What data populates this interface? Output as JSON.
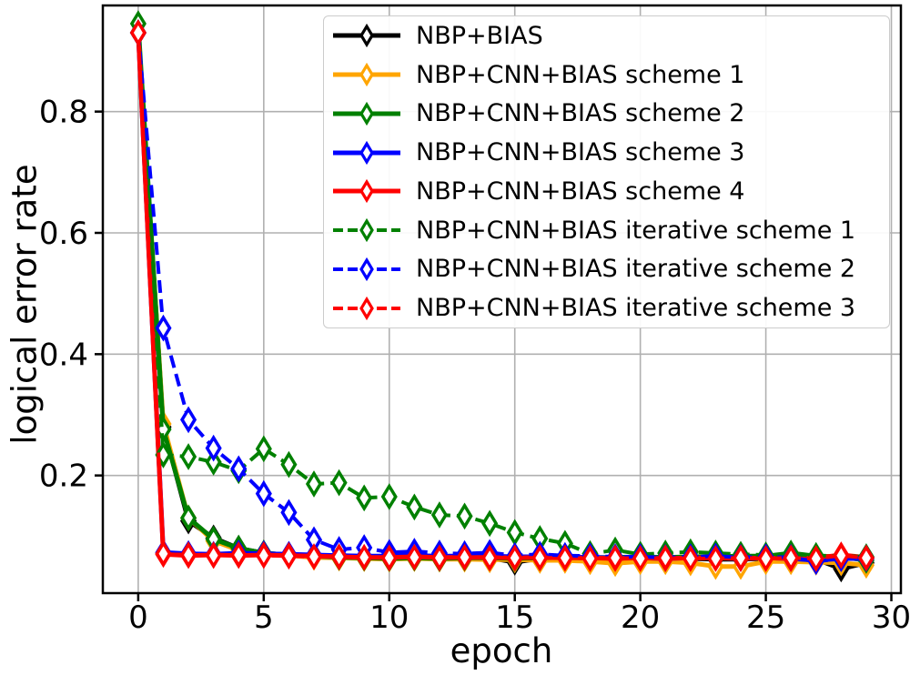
{
  "figure": {
    "background": "#ffffff",
    "frame_color": "#000000"
  },
  "chart_data": {
    "type": "line",
    "title": "",
    "xlabel": "epoch",
    "ylabel": "logical error rate",
    "grid": true,
    "grid_color": "#b0b0b0",
    "legend_position": "upper-right-inside",
    "marker": "thin-diamond-hollow",
    "xlim": [
      -1.41,
      30.38
    ],
    "ylim": [
      0.006,
      0.975
    ],
    "xticks": {
      "values": [
        0,
        5,
        10,
        15,
        20,
        25,
        30
      ],
      "labels": [
        "0",
        "5",
        "10",
        "15",
        "20",
        "25",
        "30"
      ]
    },
    "yticks": {
      "values": [
        0.2,
        0.4,
        0.6,
        0.8
      ],
      "labels": [
        "0.2",
        "0.4",
        "0.6",
        "0.8"
      ]
    },
    "x": [
      0,
      1,
      2,
      3,
      4,
      5,
      6,
      7,
      8,
      9,
      10,
      11,
      12,
      13,
      14,
      15,
      16,
      17,
      18,
      19,
      20,
      21,
      22,
      23,
      24,
      25,
      26,
      27,
      28,
      29
    ],
    "series": [
      {
        "name": "NBP+BIAS",
        "color": "#000000",
        "dash": "solid",
        "values": [
          0.93,
          0.28,
          0.125,
          0.097,
          0.08,
          0.072,
          0.069,
          0.067,
          0.065,
          0.064,
          0.064,
          0.065,
          0.063,
          0.064,
          0.064,
          0.057,
          0.063,
          0.063,
          0.062,
          0.062,
          0.063,
          0.062,
          0.063,
          0.062,
          0.062,
          0.063,
          0.062,
          0.062,
          0.046,
          0.056
        ]
      },
      {
        "name": "NBP+CNN+BIAS scheme 1",
        "color": "#FFA500",
        "dash": "solid",
        "values": [
          0.93,
          0.285,
          0.13,
          0.092,
          0.077,
          0.071,
          0.068,
          0.065,
          0.064,
          0.063,
          0.062,
          0.063,
          0.062,
          0.062,
          0.061,
          0.061,
          0.06,
          0.06,
          0.058,
          0.055,
          0.058,
          0.058,
          0.056,
          0.05,
          0.05,
          0.058,
          0.058,
          0.057,
          0.056,
          0.052
        ]
      },
      {
        "name": "NBP+CNN+BIAS scheme 2",
        "color": "#008000",
        "dash": "solid",
        "values": [
          0.945,
          0.276,
          0.13,
          0.095,
          0.08,
          0.072,
          0.069,
          0.067,
          0.065,
          0.064,
          0.063,
          0.064,
          0.063,
          0.064,
          0.064,
          0.063,
          0.064,
          0.065,
          0.065,
          0.065,
          0.066,
          0.065,
          0.066,
          0.066,
          0.067,
          0.067,
          0.072,
          0.067,
          0.066,
          0.06
        ]
      },
      {
        "name": "NBP+CNN+BIAS scheme 3",
        "color": "#0000FF",
        "dash": "solid",
        "values": [
          0.93,
          0.073,
          0.071,
          0.07,
          0.072,
          0.071,
          0.07,
          0.069,
          0.068,
          0.067,
          0.067,
          0.068,
          0.067,
          0.067,
          0.067,
          0.066,
          0.066,
          0.066,
          0.065,
          0.064,
          0.064,
          0.063,
          0.064,
          0.064,
          0.063,
          0.064,
          0.063,
          0.06,
          0.063,
          0.063
        ]
      },
      {
        "name": "NBP+CNN+BIAS scheme 4",
        "color": "#FF0000",
        "dash": "solid",
        "values": [
          0.93,
          0.07,
          0.068,
          0.069,
          0.068,
          0.069,
          0.068,
          0.067,
          0.066,
          0.065,
          0.065,
          0.066,
          0.065,
          0.065,
          0.065,
          0.064,
          0.065,
          0.064,
          0.064,
          0.063,
          0.064,
          0.063,
          0.064,
          0.064,
          0.063,
          0.064,
          0.063,
          0.064,
          0.069,
          0.065
        ]
      },
      {
        "name": "NBP+CNN+BIAS iterative scheme 1",
        "color": "#008000",
        "dash": "dashed",
        "values": [
          0.93,
          0.234,
          0.231,
          0.222,
          0.208,
          0.244,
          0.218,
          0.186,
          0.188,
          0.163,
          0.165,
          0.148,
          0.135,
          0.133,
          0.121,
          0.106,
          0.096,
          0.088,
          0.071,
          0.077,
          0.07,
          0.072,
          0.074,
          0.072,
          0.07,
          0.069,
          0.07,
          0.068,
          0.067,
          0.066
        ]
      },
      {
        "name": "NBP+CNN+BIAS iterative scheme 2",
        "color": "#0000FF",
        "dash": "dashed",
        "values": [
          0.93,
          0.443,
          0.292,
          0.245,
          0.211,
          0.17,
          0.139,
          0.094,
          0.078,
          0.081,
          0.073,
          0.075,
          0.072,
          0.071,
          0.073,
          0.068,
          0.07,
          0.068,
          0.067,
          0.066,
          0.066,
          0.065,
          0.066,
          0.067,
          0.065,
          0.066,
          0.065,
          0.058,
          0.063,
          0.064
        ]
      },
      {
        "name": "NBP+CNN+BIAS iterative scheme 3",
        "color": "#FF0000",
        "dash": "dashed",
        "values": [
          0.93,
          0.071,
          0.069,
          0.068,
          0.069,
          0.068,
          0.067,
          0.066,
          0.066,
          0.065,
          0.064,
          0.065,
          0.064,
          0.065,
          0.064,
          0.064,
          0.064,
          0.064,
          0.063,
          0.064,
          0.063,
          0.064,
          0.063,
          0.063,
          0.064,
          0.063,
          0.064,
          0.063,
          0.068,
          0.064
        ]
      }
    ]
  }
}
